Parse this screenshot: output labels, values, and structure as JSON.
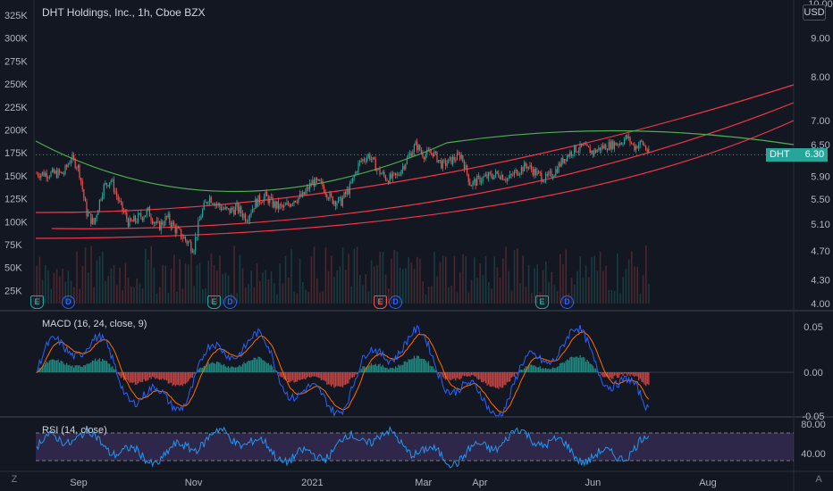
{
  "title": "DHT Holdings, Inc., 1h, Cboe BZX",
  "currency": "USD",
  "symbol_tag": {
    "symbol": "DHT",
    "price": "6.30"
  },
  "corner": {
    "left": "Z",
    "right": "A"
  },
  "chart_data": {
    "type": "line",
    "series_desc": "hourly candlesticks with volume, regression channel, MACD and RSI",
    "price_axis": {
      "labels": [
        "10.00",
        "9.00",
        "8.00",
        "7.00",
        "6.50",
        "5.90",
        "5.50",
        "5.10",
        "4.70",
        "4.30",
        "4.00"
      ],
      "scale": "log"
    },
    "volume_axis": {
      "labels": [
        "325K",
        "300K",
        "275K",
        "250K",
        "225K",
        "200K",
        "175K",
        "150K",
        "125K",
        "100K",
        "75K",
        "50K",
        "25K"
      ]
    },
    "x_axis": {
      "labels": [
        "Sep",
        "Nov",
        "2021",
        "Mar",
        "Apr",
        "Jun",
        "Aug"
      ]
    },
    "price_path": [
      {
        "x": "Aug 24",
        "y": 5.95
      },
      {
        "x": "Aug 28",
        "y": 6.25
      },
      {
        "x": "Sep 1",
        "y": 6.05
      },
      {
        "x": "Sep 5",
        "y": 5.3
      },
      {
        "x": "Sep 9",
        "y": 5.1
      },
      {
        "x": "Sep 14",
        "y": 5.7
      },
      {
        "x": "Sep 18",
        "y": 5.85
      },
      {
        "x": "Sep 23",
        "y": 5.4
      },
      {
        "x": "Sep 28",
        "y": 5.1
      },
      {
        "x": "Oct 3",
        "y": 5.2
      },
      {
        "x": "Oct 8",
        "y": 5.3
      },
      {
        "x": "Oct 13",
        "y": 5.05
      },
      {
        "x": "Oct 18",
        "y": 5.2
      },
      {
        "x": "Oct 23",
        "y": 5.0
      },
      {
        "x": "Oct 28",
        "y": 4.85
      },
      {
        "x": "Nov 1",
        "y": 4.75
      },
      {
        "x": "Nov 5",
        "y": 5.25
      },
      {
        "x": "Nov 9",
        "y": 5.55
      },
      {
        "x": "Nov 14",
        "y": 5.4
      },
      {
        "x": "Nov 19",
        "y": 5.3
      },
      {
        "x": "Nov 24",
        "y": 5.35
      },
      {
        "x": "Nov 29",
        "y": 5.2
      },
      {
        "x": "Dec 4",
        "y": 5.45
      },
      {
        "x": "Dec 9",
        "y": 5.55
      },
      {
        "x": "Dec 14",
        "y": 5.4
      },
      {
        "x": "Dec 19",
        "y": 5.35
      },
      {
        "x": "Dec 24",
        "y": 5.5
      },
      {
        "x": "Dec 29",
        "y": 5.55
      },
      {
        "x": "Jan 3",
        "y": 5.8
      },
      {
        "x": "Jan 8",
        "y": 5.75
      },
      {
        "x": "Jan 13",
        "y": 5.5
      },
      {
        "x": "Jan 18",
        "y": 5.45
      },
      {
        "x": "Jan 23",
        "y": 5.7
      },
      {
        "x": "Jan 28",
        "y": 6.15
      },
      {
        "x": "Feb 2",
        "y": 6.3
      },
      {
        "x": "Feb 7",
        "y": 6.0
      },
      {
        "x": "Feb 12",
        "y": 5.85
      },
      {
        "x": "Feb 17",
        "y": 5.9
      },
      {
        "x": "Feb 22",
        "y": 6.2
      },
      {
        "x": "Feb 27",
        "y": 6.5
      },
      {
        "x": "Mar 3",
        "y": 6.3
      },
      {
        "x": "Mar 8",
        "y": 6.35
      },
      {
        "x": "Mar 13",
        "y": 6.1
      },
      {
        "x": "Mar 18",
        "y": 6.2
      },
      {
        "x": "Mar 23",
        "y": 6.3
      },
      {
        "x": "Mar 28",
        "y": 5.75
      },
      {
        "x": "Apr 2",
        "y": 5.85
      },
      {
        "x": "Apr 7",
        "y": 5.9
      },
      {
        "x": "Apr 12",
        "y": 5.95
      },
      {
        "x": "Apr 17",
        "y": 5.85
      },
      {
        "x": "Apr 22",
        "y": 6.0
      },
      {
        "x": "Apr 27",
        "y": 6.1
      },
      {
        "x": "May 2",
        "y": 5.95
      },
      {
        "x": "May 7",
        "y": 5.85
      },
      {
        "x": "May 12",
        "y": 6.0
      },
      {
        "x": "May 17",
        "y": 6.25
      },
      {
        "x": "May 22",
        "y": 6.4
      },
      {
        "x": "May 27",
        "y": 6.45
      },
      {
        "x": "Jun 1",
        "y": 6.35
      },
      {
        "x": "Jun 6",
        "y": 6.45
      },
      {
        "x": "Jun 11",
        "y": 6.5
      },
      {
        "x": "Jun 16",
        "y": 6.55
      },
      {
        "x": "Jun 19",
        "y": 6.65
      },
      {
        "x": "Jun 23",
        "y": 6.45
      },
      {
        "x": "Jun 27",
        "y": 6.55
      },
      {
        "x": "Jul 1",
        "y": 6.3
      }
    ],
    "events": [
      {
        "label": "E",
        "kind": "earnings"
      },
      {
        "label": "D",
        "kind": "dividend"
      },
      {
        "label": "E",
        "kind": "earnings"
      },
      {
        "label": "D",
        "kind": "dividend"
      },
      {
        "label": "E",
        "kind": "earnings",
        "color": "#ef5350"
      },
      {
        "label": "D",
        "kind": "dividend"
      },
      {
        "label": "E",
        "kind": "earnings"
      },
      {
        "label": "D",
        "kind": "dividend"
      }
    ],
    "macd": {
      "label": "MACD (16, 24, close, 9)",
      "axis": [
        "0.05",
        "0.00",
        "-0.05"
      ]
    },
    "rsi": {
      "label": "RSI (14, close)",
      "axis": [
        "80.00",
        "40.00"
      ]
    },
    "colors": {
      "up": "#26a69a",
      "down": "#ef5350",
      "regression": "#f23645",
      "arc": "#4caf50",
      "macd": "#2962ff",
      "signal": "#ff6d00",
      "rsi": "#2196f3",
      "rsi_band": "#7e57c2",
      "bg": "#131722"
    }
  }
}
